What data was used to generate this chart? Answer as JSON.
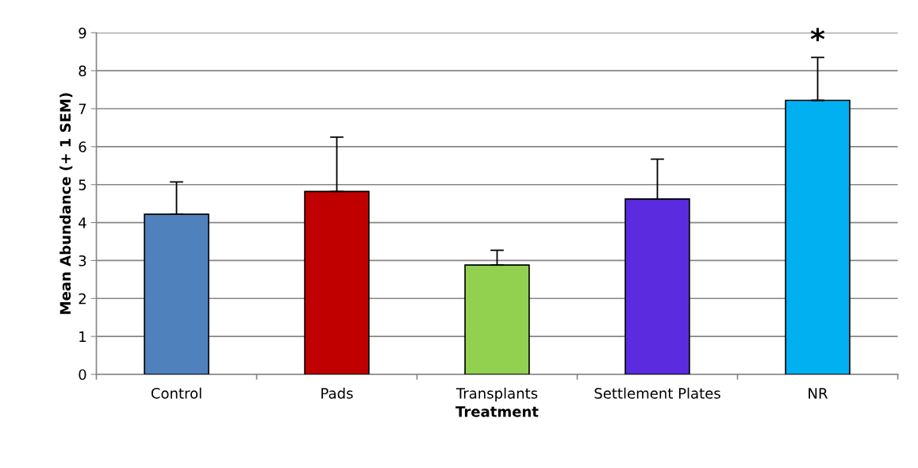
{
  "chart_data": {
    "type": "bar",
    "xlabel": "Treatment",
    "ylabel": "Mean Abundance (+ 1 SEM)",
    "categories": [
      "Control",
      "Pads",
      "Transplants",
      "Settlement Plates",
      "NR"
    ],
    "values": [
      4.22,
      4.82,
      2.88,
      4.62,
      7.22
    ],
    "colors": [
      "#4f81bd",
      "#c00000",
      "#92d050",
      "#5b2be0",
      "#00b0f0"
    ],
    "errors": [
      [
        4.22,
        5.07
      ],
      [
        4.82,
        6.25
      ],
      [
        2.88,
        3.27
      ],
      [
        4.62,
        5.67
      ],
      [
        7.22,
        8.35
      ]
    ],
    "annotations": [
      "*"
    ],
    "ylim": [
      0,
      9
    ],
    "yticks": [
      0,
      1,
      2,
      3,
      4,
      5,
      6,
      7,
      8,
      9
    ],
    "grid": "y",
    "legend": false
  }
}
